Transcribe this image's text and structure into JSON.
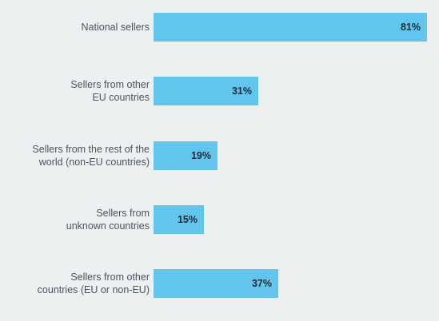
{
  "chart_data": {
    "type": "bar",
    "orientation": "horizontal",
    "categories": [
      "National sellers",
      "Sellers from other\nEU countries",
      "Sellers from the rest of the\nworld (non-EU countries)",
      "Sellers from\nunknown countries",
      "Sellers from other\ncountries (EU or non-EU)"
    ],
    "values": [
      81,
      31,
      19,
      15,
      37
    ],
    "value_labels": [
      "81%",
      "31%",
      "19%",
      "15%",
      "37%"
    ],
    "xlim": [
      0,
      100
    ],
    "grid": false,
    "bar_color": "#62c5ee"
  }
}
